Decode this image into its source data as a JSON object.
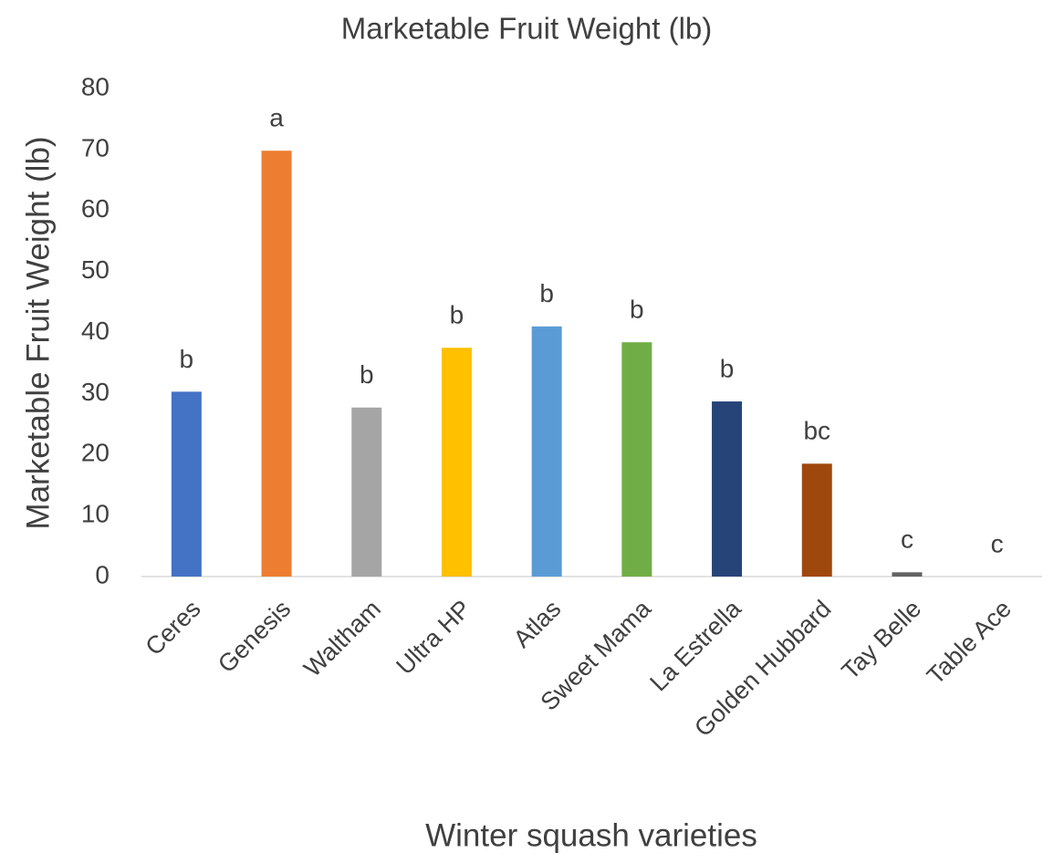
{
  "chart_data": {
    "type": "bar",
    "title": "Marketable Fruit Weight (lb)",
    "x_label": "Winter squash varieties",
    "y_label": "Marketable Fruit Weight (lb)",
    "categories": [
      "Ceres",
      "Genesis",
      "Waltham",
      "Ultra HP",
      "Atlas",
      "Sweet Mama",
      "La Estrella",
      "Golden Hubbard",
      "Tay Belle",
      "Table Ace"
    ],
    "values": [
      30.3,
      69.8,
      27.7,
      37.5,
      41.0,
      38.4,
      28.7,
      18.5,
      0.7,
      0
    ],
    "colors": [
      "#4472c4",
      "#ed7d31",
      "#a5a5a5",
      "#ffc000",
      "#5b9bd5",
      "#70ad47",
      "#264478",
      "#9e480e",
      "#636363",
      "#997300"
    ],
    "annotations": [
      "b",
      "a",
      "b",
      "b",
      "b",
      "b",
      "b",
      "bc",
      "c",
      "c"
    ],
    "ylim": [
      0,
      80
    ],
    "yticks": [
      0,
      10,
      20,
      30,
      40,
      50,
      60,
      70,
      80
    ],
    "grid": false
  }
}
